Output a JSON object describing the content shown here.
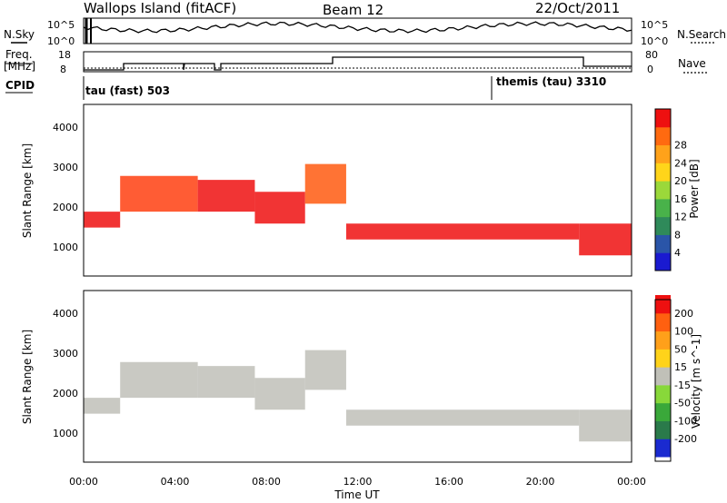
{
  "header": {
    "title": "Wallops Island (fitACF)",
    "beam": "Beam 12",
    "date": "22/Oct/2011"
  },
  "strips": {
    "nsky_label": "N.Sky",
    "nsearch_label": "N.Search",
    "freq_label_1": "Freq.",
    "freq_label_2": "[MHz]",
    "nave_label": "Nave",
    "cpid_label": "CPID",
    "nsky_ticks": [
      "10^5",
      "10^0"
    ],
    "nsearch_ticks": [
      "10^5",
      "10^0"
    ],
    "freq_ticks": [
      "18",
      "8"
    ],
    "nave_ticks": [
      "80",
      "0"
    ],
    "cpid_1": "tau (fast) 503",
    "cpid_2": "themis (tau) 3310"
  },
  "chart_data": [
    {
      "type": "heatmap",
      "title": "",
      "xlabel": "",
      "ylabel": "Slant Range [km]",
      "xlim": [
        "00:00",
        "24:00"
      ],
      "ylim": [
        180,
        4500
      ],
      "y_ticks": [
        "1000",
        "2000",
        "3000",
        "4000"
      ],
      "colorbar_label": "Power [dB]",
      "colorbar_ticks": [
        "4",
        "8",
        "12",
        "16",
        "20",
        "24",
        "28"
      ],
      "colorbar_colors": [
        "#1a1ad0",
        "#2a55a8",
        "#2f8a5a",
        "#49b24a",
        "#9bd83a",
        "#ffd51a",
        "#ffa21a",
        "#ff6a10",
        "#ee1010"
      ],
      "scatter_bands": [
        {
          "start_hour": 0.0,
          "end_hour": 1.6,
          "range_km": [
            1400,
            1800
          ],
          "color": "#ee1010"
        },
        {
          "start_hour": 1.6,
          "end_hour": 5.0,
          "range_km": [
            1800,
            2700
          ],
          "color": "#ff4010"
        },
        {
          "start_hour": 5.0,
          "end_hour": 7.5,
          "range_km": [
            1800,
            2600
          ],
          "color": "#ee1010"
        },
        {
          "start_hour": 7.5,
          "end_hour": 9.7,
          "range_km": [
            1500,
            2300
          ],
          "color": "#ee1010"
        },
        {
          "start_hour": 9.7,
          "end_hour": 11.5,
          "range_km": [
            2000,
            3000
          ],
          "color": "#ff5a10"
        },
        {
          "start_hour": 11.5,
          "end_hour": 21.7,
          "range_km": [
            1100,
            1500
          ],
          "color": "#ee1010"
        },
        {
          "start_hour": 21.7,
          "end_hour": 24.0,
          "range_km": [
            700,
            1500
          ],
          "color": "#ee1010"
        }
      ]
    },
    {
      "type": "heatmap",
      "title": "",
      "xlabel": "Time UT",
      "ylabel": "Slant Range [km]",
      "xlim": [
        "00:00",
        "24:00"
      ],
      "ylim": [
        180,
        4500
      ],
      "x_ticks": [
        "00:00",
        "04:00",
        "08:00",
        "12:00",
        "16:00",
        "20:00",
        "00:00"
      ],
      "y_ticks": [
        "1000",
        "2000",
        "3000",
        "4000"
      ],
      "colorbar_label": "Velocity [m s^-1]",
      "colorbar_ticks": [
        "200",
        "100",
        "50",
        "15",
        "-15",
        "-50",
        "-100",
        "-200"
      ],
      "colorbar_colors": [
        "#1a2ad0",
        "#2a7a4a",
        "#3aa83a",
        "#88d83a",
        "#c0c0b8",
        "#ffd31a",
        "#ffa01a",
        "#ff6010",
        "#ee1010"
      ],
      "scatter_bands": [
        {
          "start_hour": 0.0,
          "end_hour": 1.6,
          "range_km": [
            1400,
            1800
          ],
          "color": "#c0c0b8"
        },
        {
          "start_hour": 1.6,
          "end_hour": 5.0,
          "range_km": [
            1800,
            2700
          ],
          "color": "#c0c0b8"
        },
        {
          "start_hour": 5.0,
          "end_hour": 7.5,
          "range_km": [
            1800,
            2600
          ],
          "color": "#c0c0b8"
        },
        {
          "start_hour": 7.5,
          "end_hour": 9.7,
          "range_km": [
            1500,
            2300
          ],
          "color": "#c0c0b8"
        },
        {
          "start_hour": 9.7,
          "end_hour": 11.5,
          "range_km": [
            2000,
            3000
          ],
          "color": "#c0c0b8"
        },
        {
          "start_hour": 11.5,
          "end_hour": 21.7,
          "range_km": [
            1100,
            1500
          ],
          "color": "#c0c0b8"
        },
        {
          "start_hour": 21.7,
          "end_hour": 24.0,
          "range_km": [
            700,
            1500
          ],
          "color": "#c0c0b8"
        }
      ]
    }
  ]
}
